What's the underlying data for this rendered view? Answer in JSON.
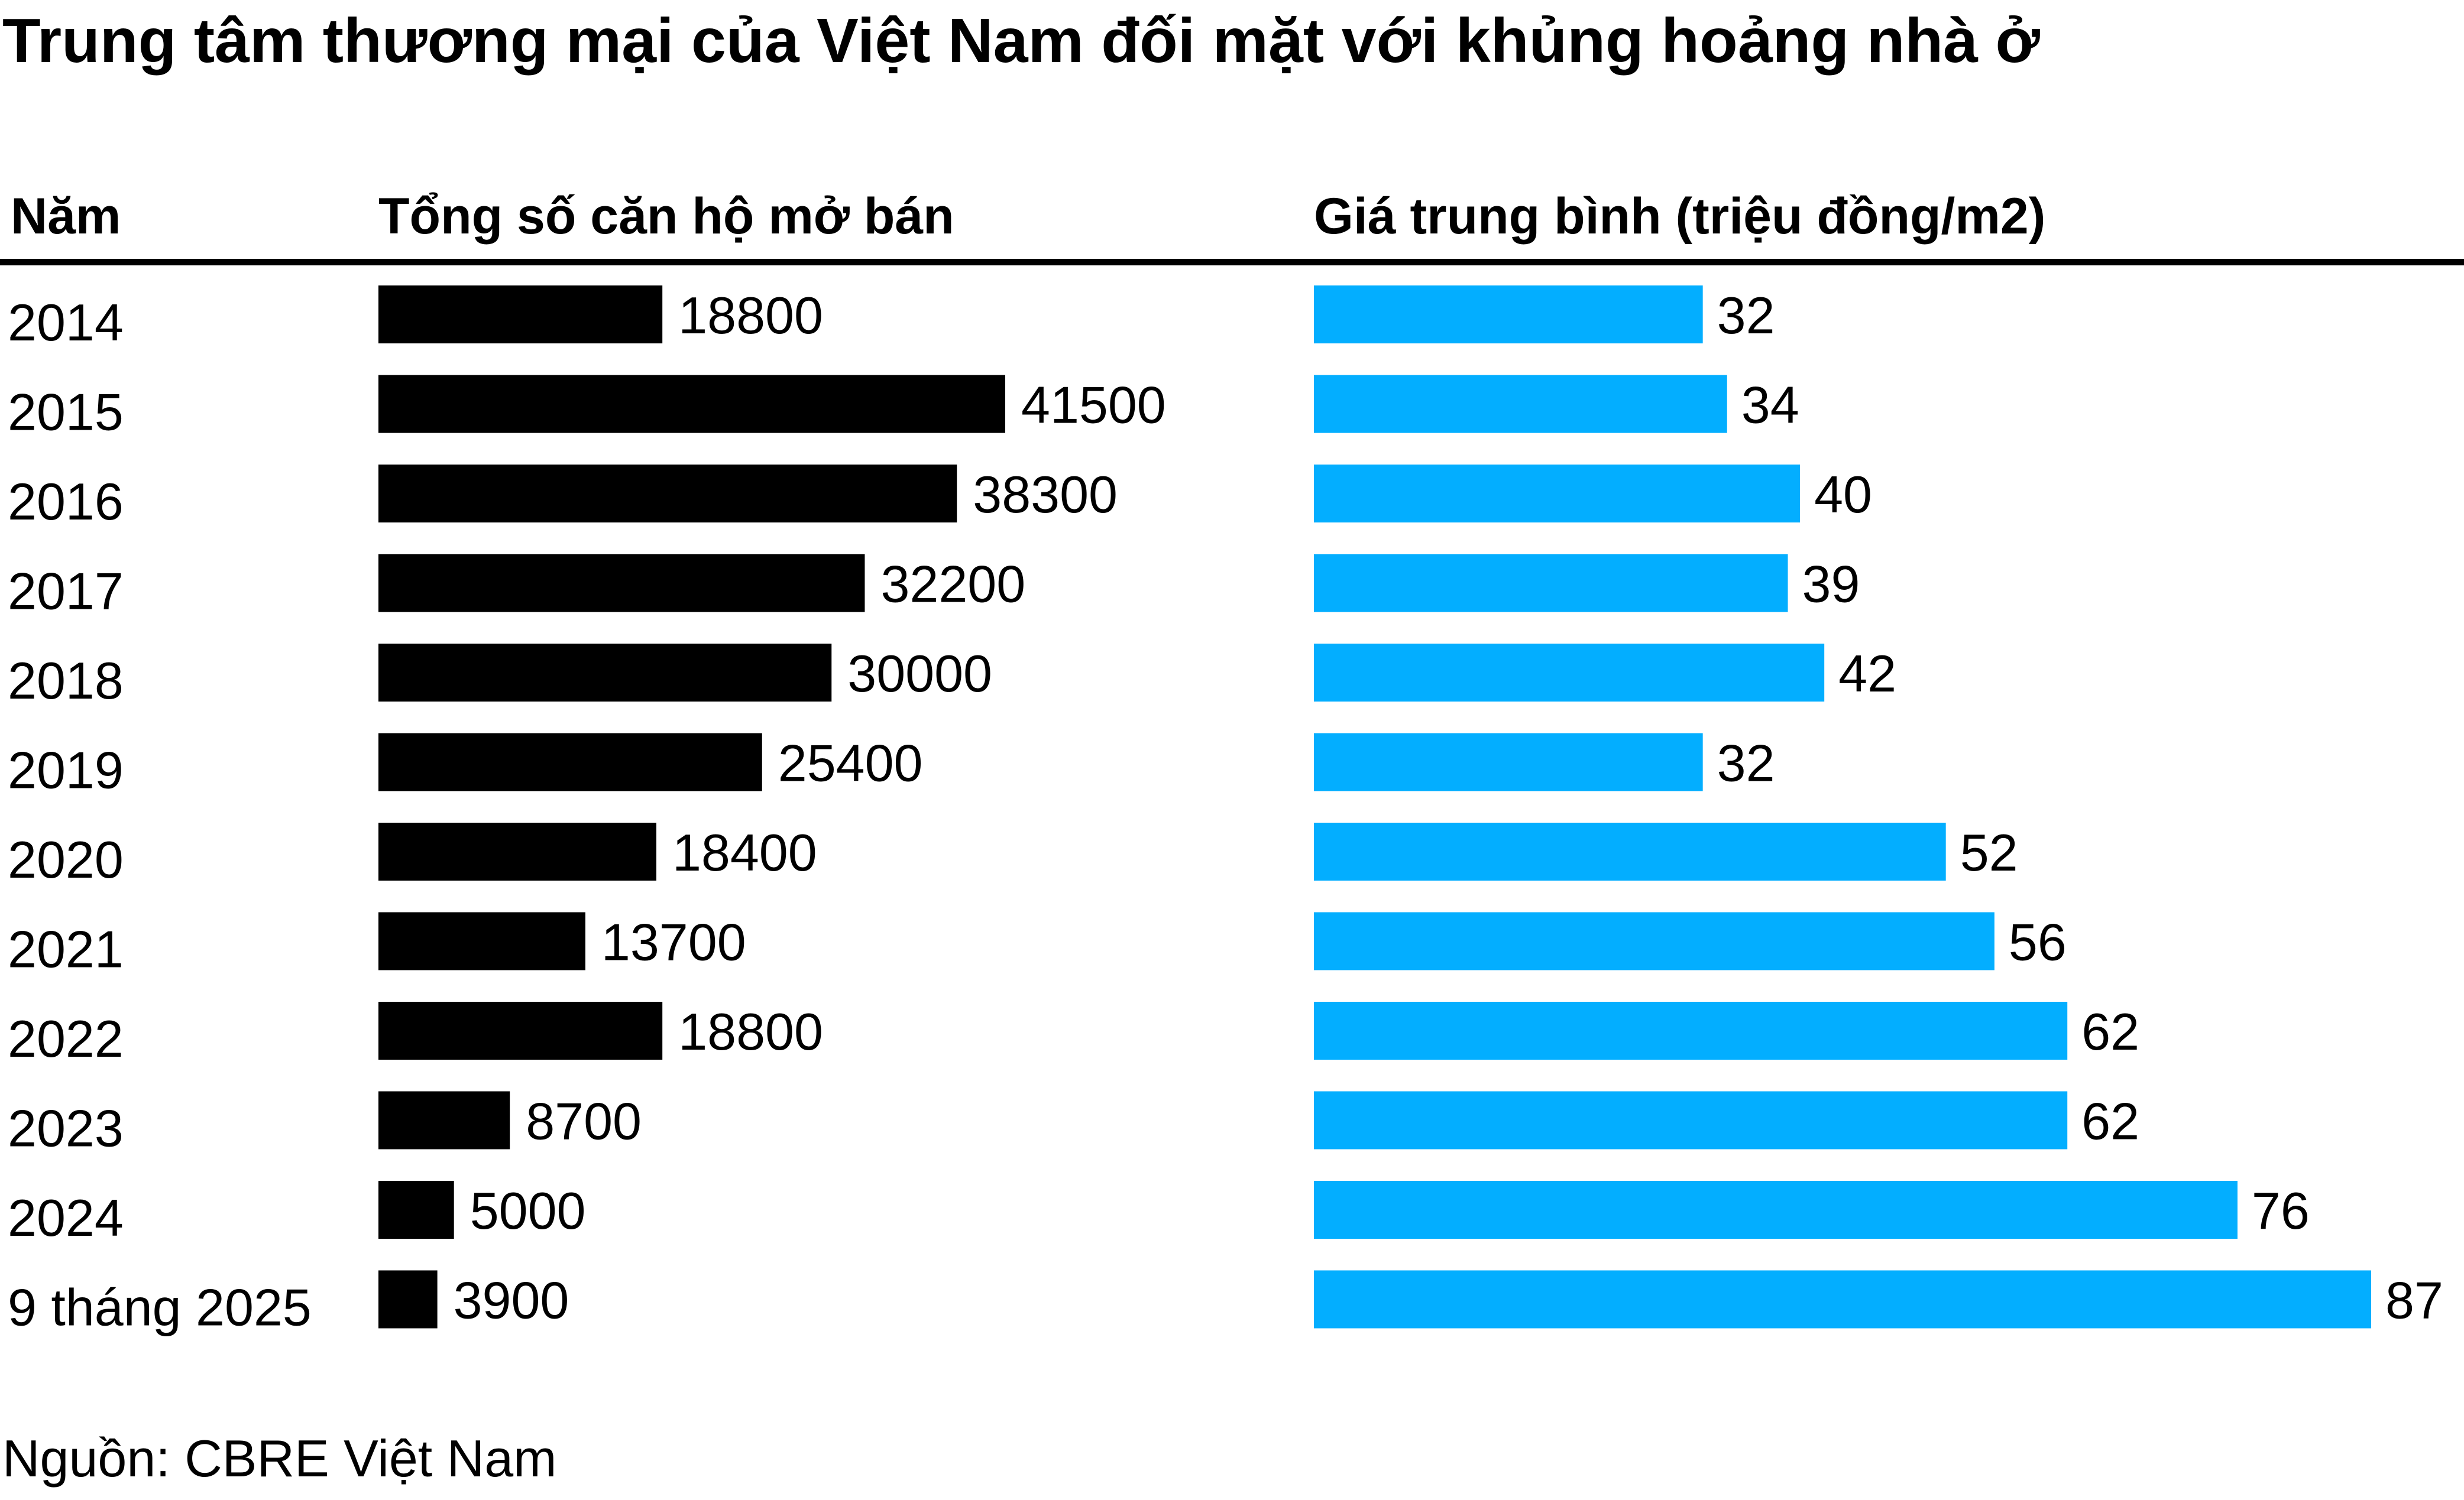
{
  "chart_data": {
    "type": "bar",
    "title": "Trung tâm thương mại của Việt Nam đối mặt với khủng hoảng nhà ở",
    "source": "Nguồn: CBRE Việt Nam",
    "column_headers": {
      "year": "Năm",
      "units": "Tổng số căn hộ mở bán",
      "price": "Giá trung bình (triệu đồng/m2)"
    },
    "categories": [
      "2014",
      "2015",
      "2016",
      "2017",
      "2018",
      "2019",
      "2020",
      "2021",
      "2022",
      "2023",
      "2024",
      "9 tháng 2025"
    ],
    "series": [
      {
        "name": "Tổng số căn hộ mở bán",
        "color": "#000000",
        "values": [
          18800,
          41500,
          38300,
          32200,
          30000,
          25400,
          18400,
          13700,
          18800,
          8700,
          5000,
          3900
        ]
      },
      {
        "name": "Giá trung bình (triệu đồng/m2)",
        "color": "#03AEFF",
        "values": [
          32,
          34,
          40,
          39,
          42,
          32,
          52,
          56,
          62,
          62,
          76,
          87
        ]
      }
    ],
    "orientation": "horizontal",
    "grid": false,
    "legend": "none"
  }
}
